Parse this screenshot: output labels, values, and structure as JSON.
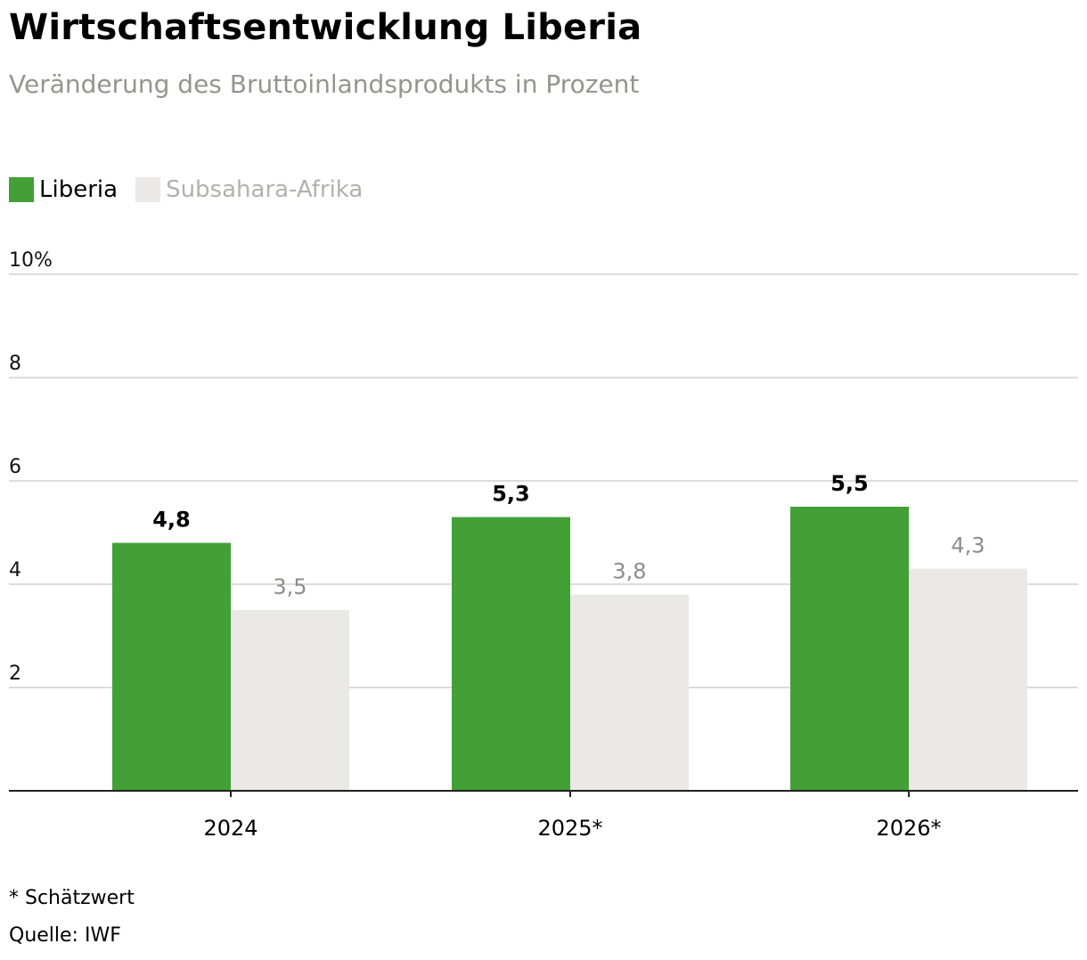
{
  "title": "Wirtschaftsentwicklung Liberia",
  "subtitle": "Veränderung des Bruttoinlandsprodukts in Prozent",
  "footnote": "* Schätzwert",
  "source": "Quelle: IWF",
  "colors": {
    "liberia": "#43a036",
    "subsahara": "#eae9e7",
    "grid": "#dcdcdc",
    "axis": "#222222",
    "label_secondary": "#8f8c86"
  },
  "chart_data": {
    "type": "bar",
    "categories": [
      "2024",
      "2025*",
      "2026*"
    ],
    "series": [
      {
        "name": "Liberia",
        "values": [
          4.8,
          5.3,
          5.5
        ],
        "labels": [
          "4,8",
          "5,3",
          "5,5"
        ]
      },
      {
        "name": "Subsahara-Afrika",
        "values": [
          3.5,
          3.8,
          4.3
        ],
        "labels": [
          "3,5",
          "3,8",
          "4,3"
        ]
      }
    ],
    "y_ticks": [
      {
        "value": 2,
        "label": "2"
      },
      {
        "value": 4,
        "label": "4"
      },
      {
        "value": 6,
        "label": "6"
      },
      {
        "value": 8,
        "label": "8"
      },
      {
        "value": 10,
        "label": "10%"
      }
    ],
    "ylim": [
      0,
      10
    ],
    "grid": true,
    "legend": "top-left",
    "title": "Wirtschaftsentwicklung Liberia",
    "xlabel": "",
    "ylabel": ""
  }
}
